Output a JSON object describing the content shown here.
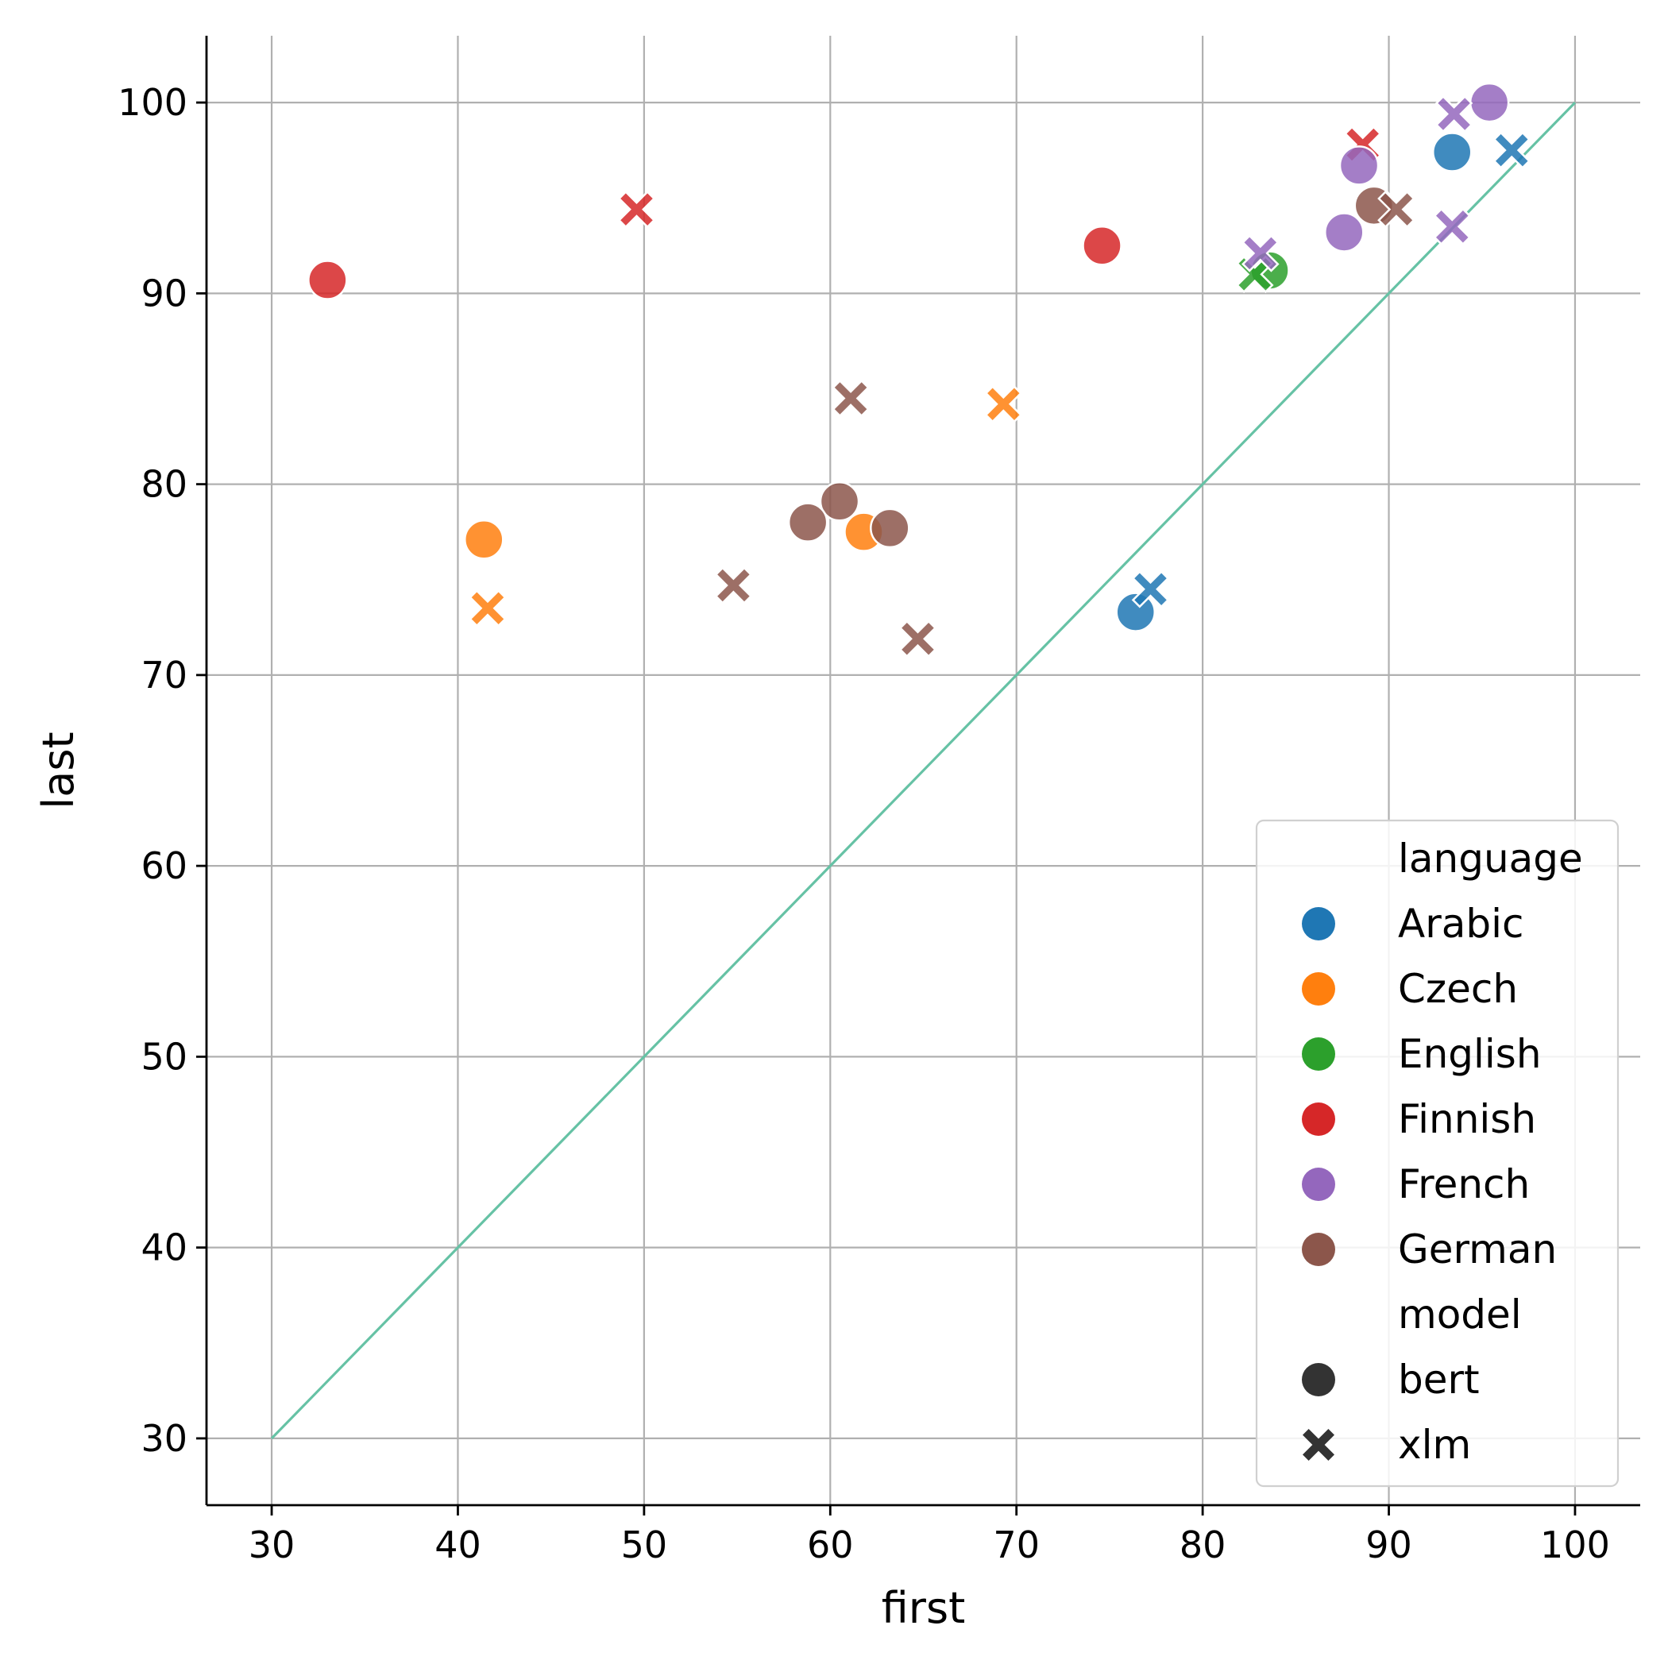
{
  "chart_data": {
    "type": "scatter",
    "xlabel": "first",
    "ylabel": "last",
    "xlim": [
      26.5,
      103.5
    ],
    "ylim": [
      26.5,
      103.5
    ],
    "xticks": [
      30,
      40,
      50,
      60,
      70,
      80,
      90,
      100
    ],
    "yticks": [
      30,
      40,
      50,
      60,
      70,
      80,
      90,
      100
    ],
    "grid": true,
    "reference_line": {
      "from": [
        30,
        30
      ],
      "to": [
        100,
        100
      ],
      "color": "#66c2a5"
    },
    "legend": {
      "placement": "lower right",
      "hue_title": "language",
      "style_title": "model",
      "languages": [
        {
          "name": "Arabic",
          "color": "#1f77b4"
        },
        {
          "name": "Czech",
          "color": "#ff7f0e"
        },
        {
          "name": "English",
          "color": "#2ca02c"
        },
        {
          "name": "Finnish",
          "color": "#d62728"
        },
        {
          "name": "French",
          "color": "#9467bd"
        },
        {
          "name": "German",
          "color": "#8c564b"
        }
      ],
      "models": [
        {
          "name": "bert",
          "marker": "circle"
        },
        {
          "name": "xlm",
          "marker": "x"
        }
      ]
    },
    "points": [
      {
        "language": "Arabic",
        "model": "bert",
        "x": 76.4,
        "y": 73.3
      },
      {
        "language": "Arabic",
        "model": "xlm",
        "x": 77.2,
        "y": 74.5
      },
      {
        "language": "Arabic",
        "model": "bert",
        "x": 93.4,
        "y": 97.4
      },
      {
        "language": "Arabic",
        "model": "xlm",
        "x": 96.6,
        "y": 97.5
      },
      {
        "language": "Czech",
        "model": "bert",
        "x": 41.4,
        "y": 77.1
      },
      {
        "language": "Czech",
        "model": "xlm",
        "x": 41.6,
        "y": 73.5
      },
      {
        "language": "Czech",
        "model": "bert",
        "x": 61.8,
        "y": 77.5
      },
      {
        "language": "Czech",
        "model": "xlm",
        "x": 69.3,
        "y": 84.2
      },
      {
        "language": "English",
        "model": "bert",
        "x": 83.6,
        "y": 91.2
      },
      {
        "language": "English",
        "model": "xlm",
        "x": 82.8,
        "y": 91.0
      },
      {
        "language": "Finnish",
        "model": "bert",
        "x": 33.0,
        "y": 90.7
      },
      {
        "language": "Finnish",
        "model": "xlm",
        "x": 49.6,
        "y": 94.4
      },
      {
        "language": "Finnish",
        "model": "bert",
        "x": 74.6,
        "y": 92.5
      },
      {
        "language": "Finnish",
        "model": "xlm",
        "x": 88.6,
        "y": 97.8
      },
      {
        "language": "French",
        "model": "bert",
        "x": 95.4,
        "y": 100.0
      },
      {
        "language": "French",
        "model": "xlm",
        "x": 93.5,
        "y": 99.4
      },
      {
        "language": "French",
        "model": "bert",
        "x": 88.4,
        "y": 96.7
      },
      {
        "language": "French",
        "model": "bert",
        "x": 87.6,
        "y": 93.2
      },
      {
        "language": "French",
        "model": "xlm",
        "x": 93.4,
        "y": 93.5
      },
      {
        "language": "French",
        "model": "xlm",
        "x": 83.1,
        "y": 92.1
      },
      {
        "language": "German",
        "model": "bert",
        "x": 89.2,
        "y": 94.6
      },
      {
        "language": "German",
        "model": "xlm",
        "x": 90.4,
        "y": 94.4
      },
      {
        "language": "German",
        "model": "xlm",
        "x": 61.1,
        "y": 84.5
      },
      {
        "language": "German",
        "model": "bert",
        "x": 60.5,
        "y": 79.1
      },
      {
        "language": "German",
        "model": "bert",
        "x": 58.8,
        "y": 78.0
      },
      {
        "language": "German",
        "model": "bert",
        "x": 63.2,
        "y": 77.7
      },
      {
        "language": "German",
        "model": "xlm",
        "x": 54.8,
        "y": 74.7
      },
      {
        "language": "German",
        "model": "xlm",
        "x": 64.7,
        "y": 71.9
      }
    ]
  }
}
